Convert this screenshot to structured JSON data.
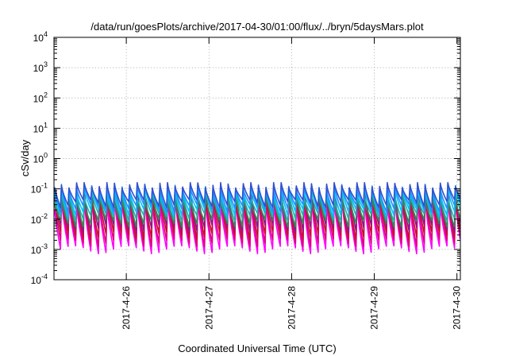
{
  "chart_data": {
    "type": "line",
    "title": "/data/run/goesPlots/archive/2017-04-30/01:00/flux/../bryn/5daysMars.plot",
    "xlabel": "Coordinated Universal Time (UTC)",
    "ylabel": "cSv/day",
    "yscale": "log",
    "ylim": [
      0.0001,
      10000
    ],
    "ytick_exponents": [
      -4,
      -3,
      -2,
      -1,
      0,
      1,
      2,
      3,
      4
    ],
    "ytick_base": "10",
    "xlim": [
      "2017-04-25 03:00",
      "2017-04-30 01:00"
    ],
    "xticks": [
      "2017-4-26",
      "2017-4-27",
      "2017-4-28",
      "2017-4-29",
      "2017-4-30"
    ],
    "grid": true,
    "legend": "none",
    "cycle_hours": 2.2,
    "series": [
      {
        "color": "#ff00ff",
        "peak": 0.04,
        "trough": 0.0012
      },
      {
        "color": "#e0007a",
        "peak": 0.06,
        "trough": 0.002
      },
      {
        "color": "#c8102e",
        "peak": 0.08,
        "trough": 0.0035
      },
      {
        "color": "#8b1a8b",
        "peak": 0.1,
        "trough": 0.006
      },
      {
        "color": "#2e8b57",
        "peak": 0.05,
        "trough": 0.009
      },
      {
        "color": "#20b2aa",
        "peak": 0.07,
        "trough": 0.014
      },
      {
        "color": "#00bfff",
        "peak": 0.1,
        "trough": 0.02
      },
      {
        "color": "#1e90ff",
        "peak": 0.12,
        "trough": 0.028
      },
      {
        "color": "#3050d0",
        "peak": 0.14,
        "trough": 0.04
      }
    ]
  }
}
